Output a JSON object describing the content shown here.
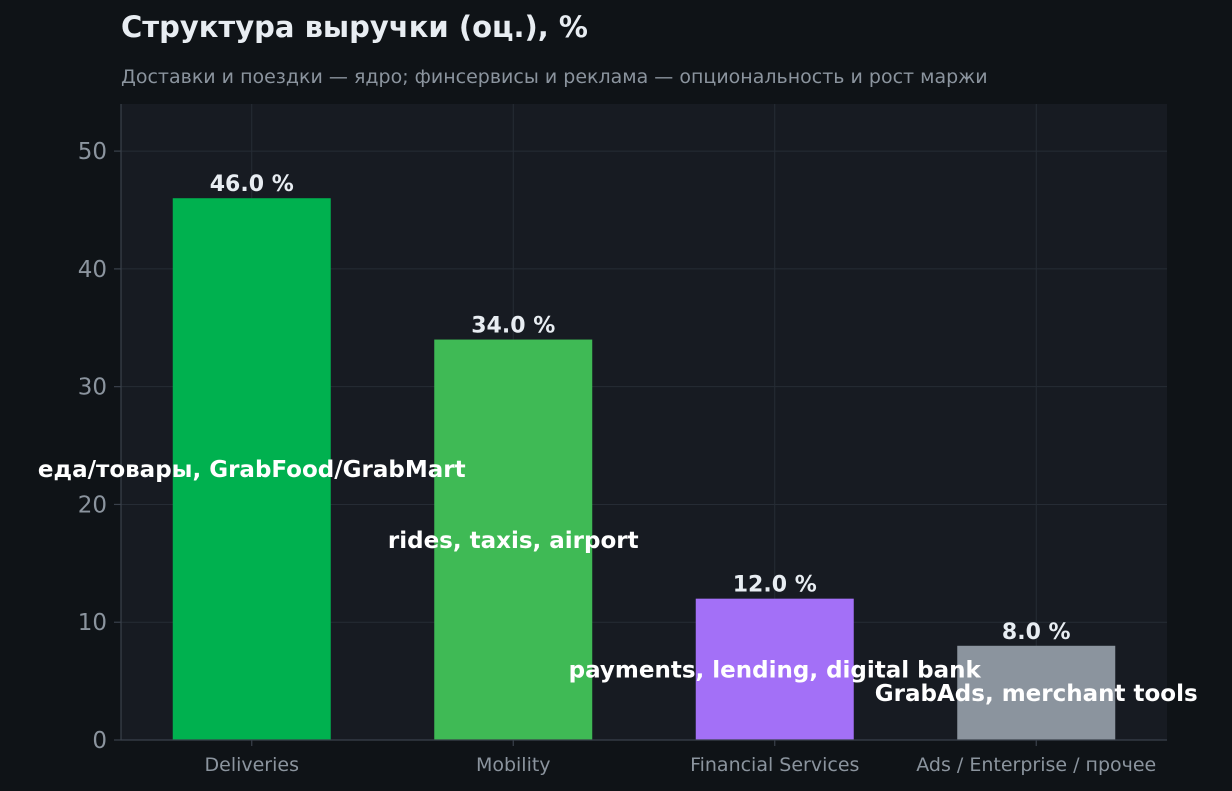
{
  "colors": {
    "background": "#0f1317",
    "plot_background": "#171b22",
    "grid": "#262c35",
    "axis": "#3a414b",
    "tick_text": "#8b949e",
    "title": "#e8edf2",
    "value_label": "#e8edf2",
    "inner_label": "#ffffff"
  },
  "chart_data": {
    "type": "bar",
    "title": "Структура выручки (оц.), %",
    "subtitle": "Доставки и поездки — ядро; финсервисы и реклама — опциональность и рост маржи",
    "xlabel": "",
    "ylabel": "",
    "ylim": [
      0,
      54
    ],
    "yticks": [
      0,
      10,
      20,
      30,
      40,
      50
    ],
    "grid": true,
    "categories": [
      "Deliveries",
      "Mobility",
      "Financial Services",
      "Ads / Enterprise / прочее"
    ],
    "values": [
      46.0,
      34.0,
      12.0,
      8.0
    ],
    "value_labels": [
      "46.0 %",
      "34.0 %",
      "12.0 %",
      "8.0 %"
    ],
    "inner_labels": [
      "еда/товары, GrabFood/GrabMart",
      "rides, taxis, airport",
      "payments, lending, digital bank",
      "GrabAds, merchant tools"
    ],
    "bar_colors": [
      "#00b14f",
      "#3fba55",
      "#a370f7",
      "#8b949e"
    ]
  }
}
